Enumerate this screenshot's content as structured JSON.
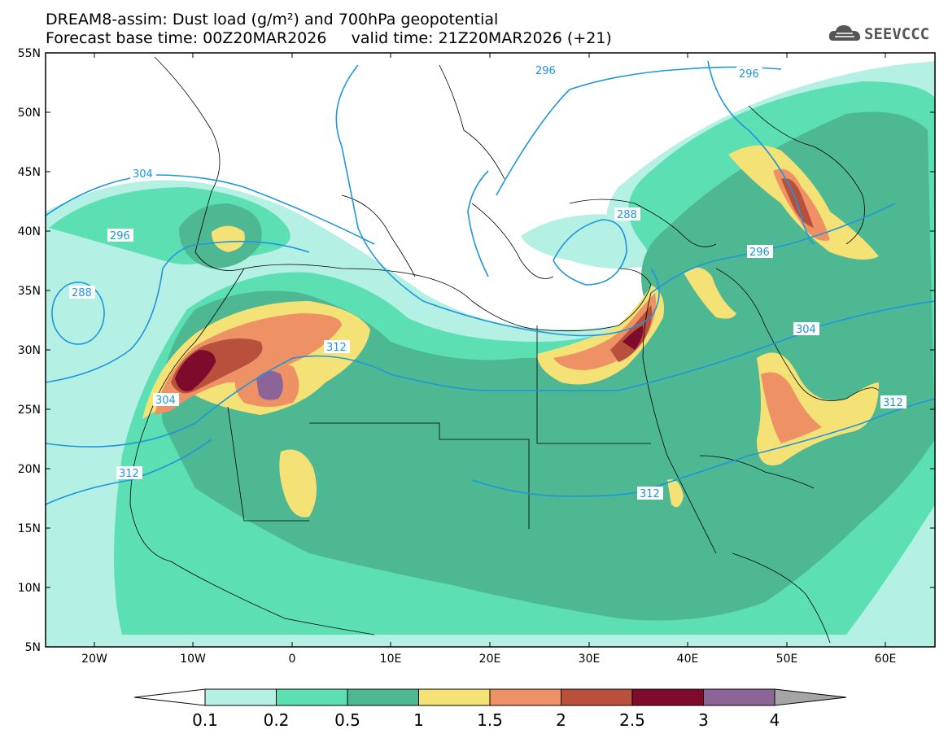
{
  "title_line1": "DREAM8-assim: Dust load (g/m²) and 700hPa geopotential",
  "title_line2": "Forecast base time: 00Z20MAR2026     valid time: 21Z20MAR2026 (+21)",
  "logo_text": "SEEVCCC",
  "lat_labels": [
    "55N",
    "50N",
    "45N",
    "40N",
    "35N",
    "30N",
    "25N",
    "20N",
    "15N",
    "10N",
    "5N"
  ],
  "lon_labels": [
    "20W",
    "10W",
    "0",
    "10E",
    "20E",
    "30E",
    "40E",
    "50E",
    "60E"
  ],
  "contour_labels": [
    "296",
    "296",
    "304",
    "296",
    "288",
    "288",
    "296",
    "312",
    "304",
    "304",
    "312",
    "312",
    "312"
  ],
  "colorbar": {
    "ticks": [
      "0.1",
      "0.2",
      "0.5",
      "1",
      "1.5",
      "2",
      "2.5",
      "3",
      "4"
    ],
    "colors": [
      "#b4f0e4",
      "#5ddfb4",
      "#4eb893",
      "#f5e276",
      "#ee9165",
      "#b8503c",
      "#7e0a2c",
      "#8c6497",
      "#a5a5a5"
    ]
  },
  "colors": {
    "c01": "#b4f0e4",
    "c02": "#5ddfb4",
    "c05": "#4eb893",
    "c1": "#f5e276",
    "c15": "#ee9165",
    "c2": "#b8503c",
    "c25": "#7e0a2c",
    "c3": "#8c6497",
    "contour": "#1e96dc"
  }
}
